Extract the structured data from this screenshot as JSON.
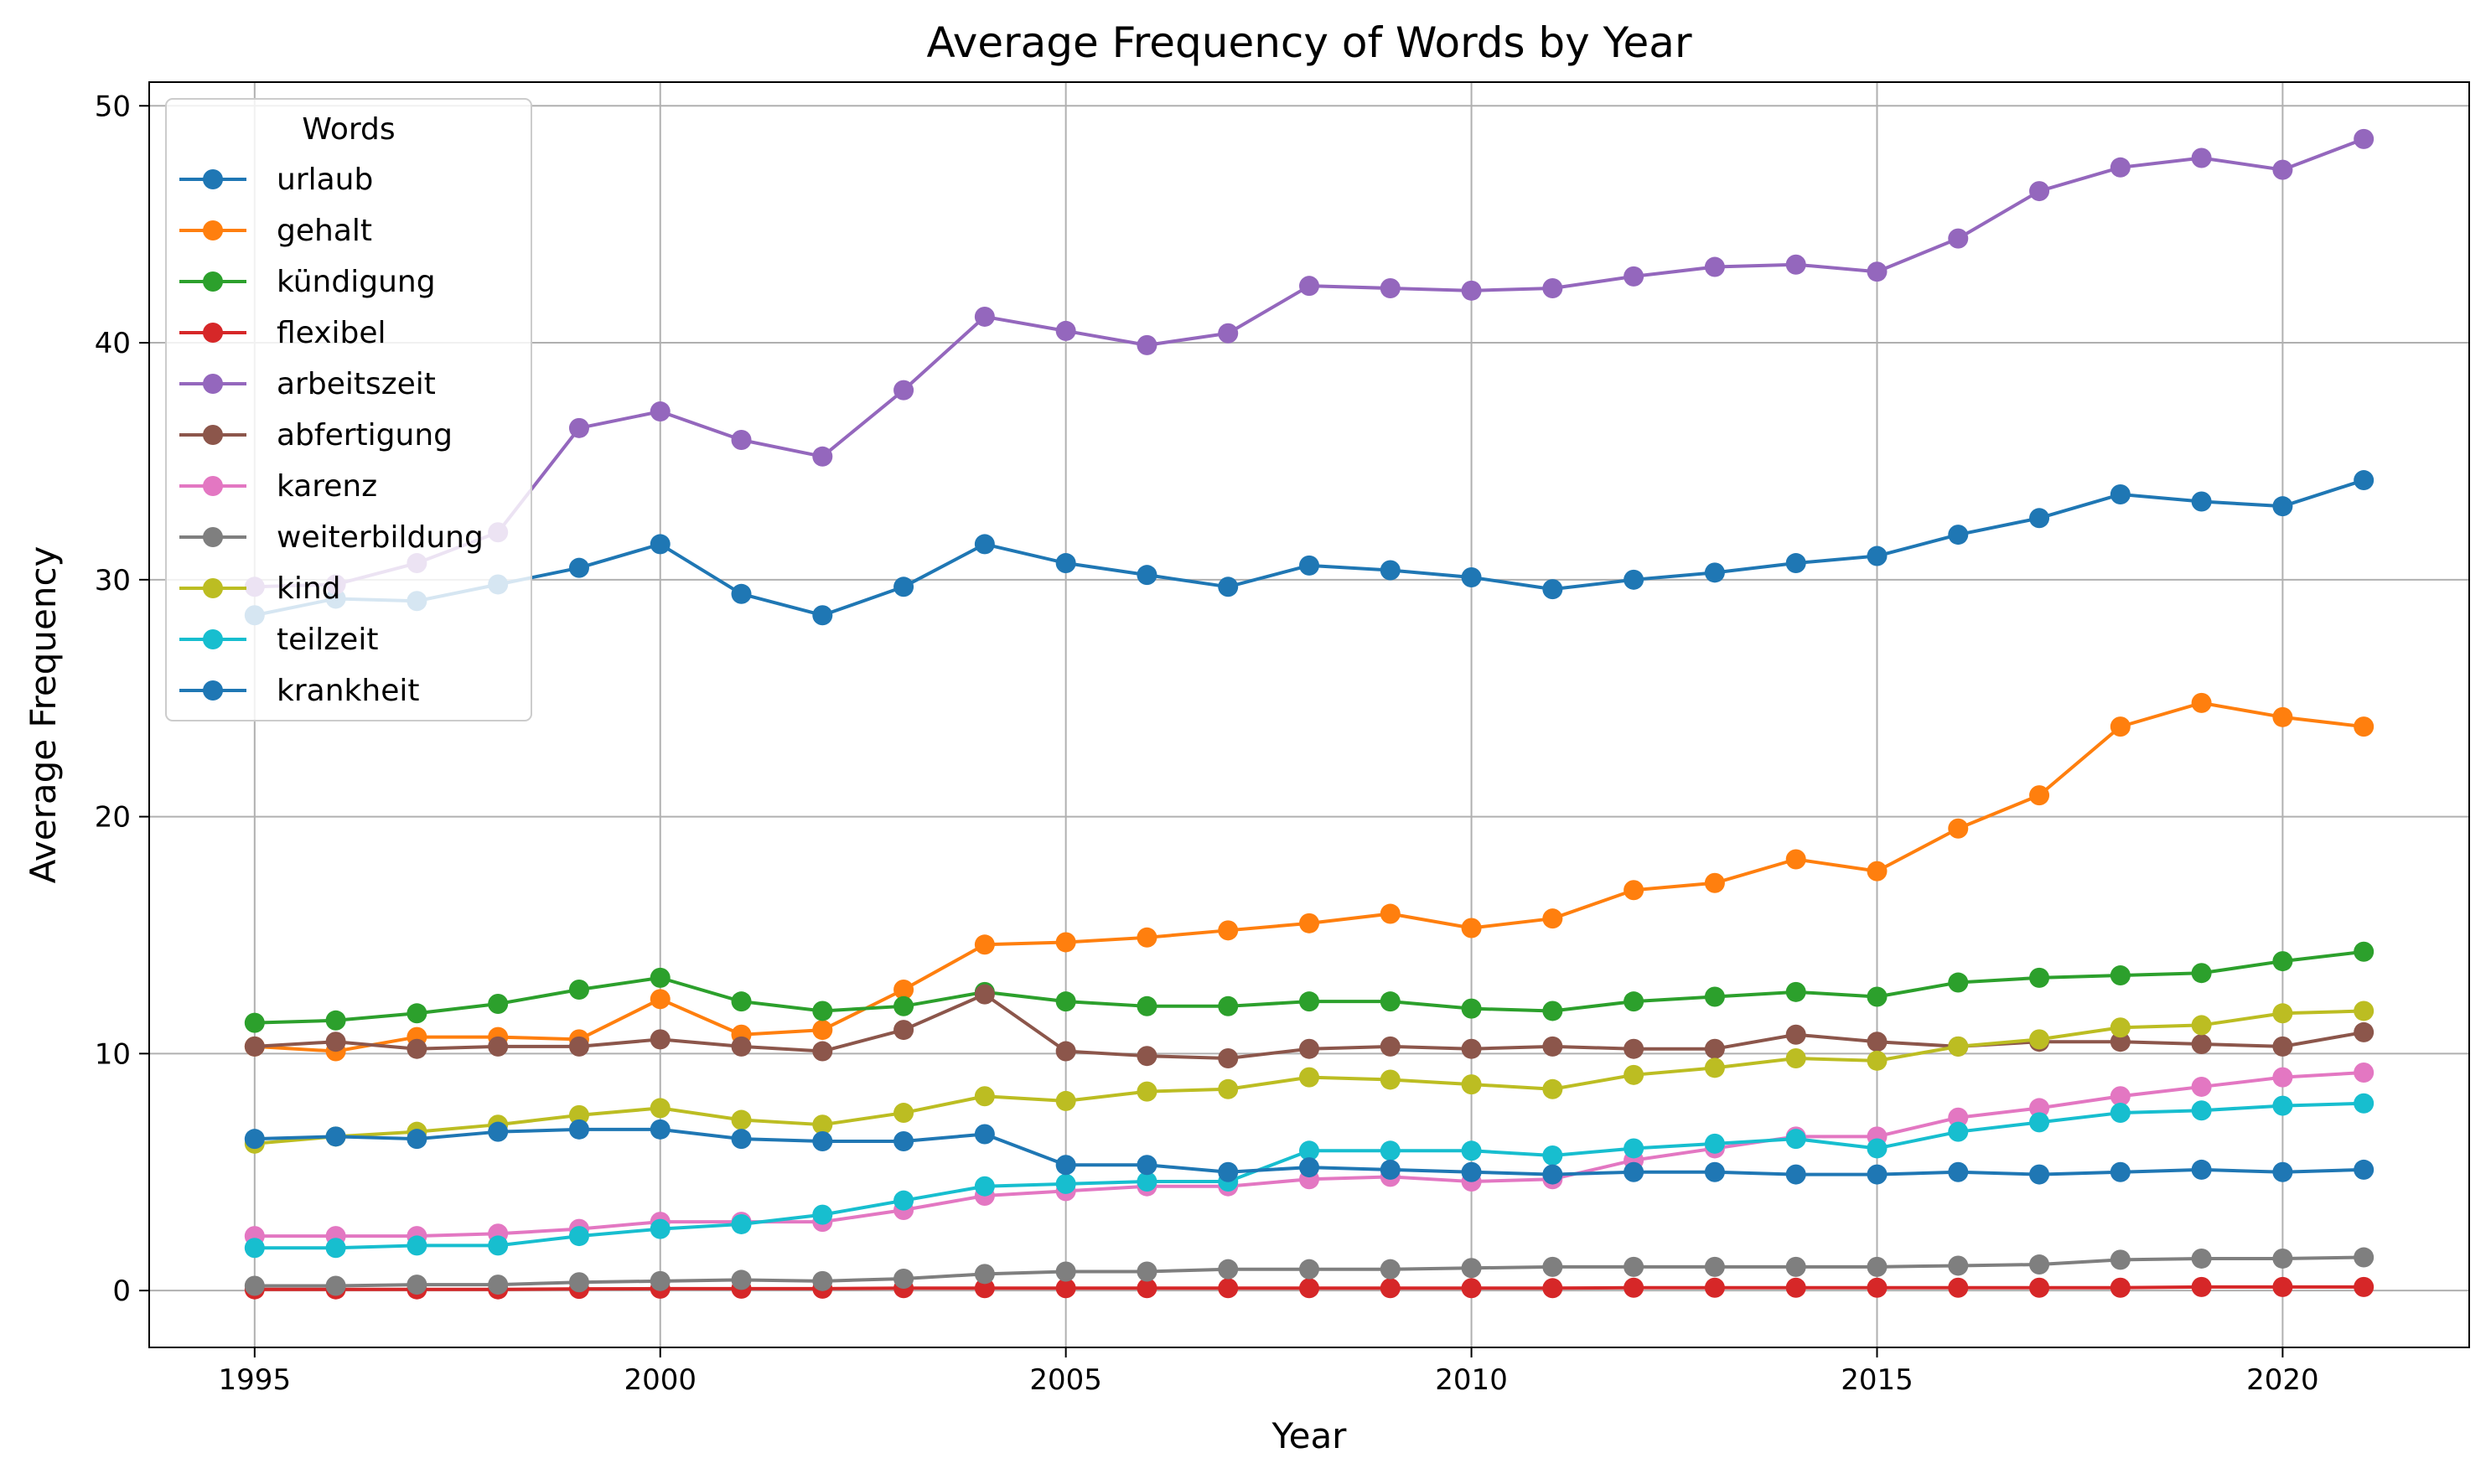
{
  "chart_data": {
    "type": "line",
    "title": "Average Frequency of Words by Year",
    "xlabel": "Year",
    "ylabel": "Average Frequency",
    "xlim": [
      1993.7,
      2022.3
    ],
    "ylim": [
      -2.4,
      51.0
    ],
    "xticks": [
      1995,
      2000,
      2005,
      2010,
      2015,
      2020
    ],
    "yticks": [
      0,
      10,
      20,
      30,
      40,
      50
    ],
    "grid": true,
    "legend": {
      "title": "Words",
      "placement": "upper-left"
    },
    "x": [
      1995,
      1996,
      1997,
      1998,
      1999,
      2000,
      2001,
      2002,
      2003,
      2004,
      2005,
      2006,
      2007,
      2008,
      2009,
      2010,
      2011,
      2012,
      2013,
      2014,
      2015,
      2016,
      2017,
      2018,
      2019,
      2020,
      2021
    ],
    "series": [
      {
        "name": "urlaub",
        "color": "#1f77b4",
        "values": [
          28.5,
          29.2,
          29.1,
          29.8,
          30.5,
          31.5,
          29.4,
          28.5,
          29.7,
          31.5,
          30.7,
          30.2,
          29.7,
          30.6,
          30.4,
          30.1,
          29.6,
          30.0,
          30.3,
          30.7,
          31.0,
          31.9,
          32.6,
          33.6,
          33.3,
          33.1,
          34.2
        ]
      },
      {
        "name": "gehalt",
        "color": "#ff7f0e",
        "values": [
          10.3,
          10.1,
          10.7,
          10.7,
          10.6,
          12.3,
          10.8,
          11.0,
          12.7,
          14.6,
          14.7,
          14.9,
          15.2,
          15.5,
          15.9,
          15.3,
          15.7,
          16.9,
          17.2,
          18.2,
          17.7,
          19.5,
          20.9,
          23.8,
          24.8,
          24.2,
          23.8
        ]
      },
      {
        "name": "kündigung",
        "color": "#2ca02c",
        "values": [
          11.3,
          11.4,
          11.7,
          12.1,
          12.7,
          13.2,
          12.2,
          11.8,
          12.0,
          12.6,
          12.2,
          12.0,
          12.0,
          12.2,
          12.2,
          11.9,
          11.8,
          12.2,
          12.4,
          12.6,
          12.4,
          13.0,
          13.2,
          13.3,
          13.4,
          13.9,
          14.3
        ]
      },
      {
        "name": "flexibel",
        "color": "#d62728",
        "values": [
          0.05,
          0.05,
          0.05,
          0.05,
          0.07,
          0.08,
          0.08,
          0.08,
          0.1,
          0.1,
          0.1,
          0.1,
          0.1,
          0.1,
          0.1,
          0.1,
          0.1,
          0.12,
          0.12,
          0.12,
          0.12,
          0.12,
          0.12,
          0.12,
          0.15,
          0.15,
          0.15
        ]
      },
      {
        "name": "arbeitszeit",
        "color": "#9467bd",
        "values": [
          29.7,
          29.8,
          30.7,
          32.0,
          36.4,
          37.1,
          35.9,
          35.2,
          38.0,
          41.1,
          40.5,
          39.9,
          40.4,
          42.4,
          42.3,
          42.2,
          42.3,
          42.8,
          43.2,
          43.3,
          43.0,
          44.4,
          46.4,
          47.4,
          47.8,
          47.3,
          48.6
        ]
      },
      {
        "name": "abfertigung",
        "color": "#8c564b",
        "values": [
          10.3,
          10.5,
          10.2,
          10.3,
          10.3,
          10.6,
          10.3,
          10.1,
          11.0,
          12.5,
          10.1,
          9.9,
          9.8,
          10.2,
          10.3,
          10.2,
          10.3,
          10.2,
          10.2,
          10.8,
          10.5,
          10.3,
          10.5,
          10.5,
          10.4,
          10.3,
          10.9
        ]
      },
      {
        "name": "karenz",
        "color": "#e377c2",
        "values": [
          2.3,
          2.3,
          2.3,
          2.4,
          2.6,
          2.9,
          2.9,
          2.9,
          3.4,
          4.0,
          4.2,
          4.4,
          4.4,
          4.7,
          4.8,
          4.6,
          4.7,
          5.5,
          6.0,
          6.5,
          6.5,
          7.3,
          7.7,
          8.2,
          8.6,
          9.0,
          9.2
        ]
      },
      {
        "name": "weiterbildung",
        "color": "#7f7f7f",
        "values": [
          0.2,
          0.2,
          0.25,
          0.25,
          0.35,
          0.4,
          0.45,
          0.4,
          0.5,
          0.7,
          0.8,
          0.8,
          0.9,
          0.9,
          0.9,
          0.95,
          1.0,
          1.0,
          1.0,
          1.0,
          1.0,
          1.05,
          1.1,
          1.3,
          1.35,
          1.35,
          1.4
        ]
      },
      {
        "name": "kind",
        "color": "#bcbd22",
        "values": [
          6.2,
          6.5,
          6.7,
          7.0,
          7.4,
          7.7,
          7.2,
          7.0,
          7.5,
          8.2,
          8.0,
          8.4,
          8.5,
          9.0,
          8.9,
          8.7,
          8.5,
          9.1,
          9.4,
          9.8,
          9.7,
          10.3,
          10.6,
          11.1,
          11.2,
          11.7,
          11.8
        ]
      },
      {
        "name": "teilzeit",
        "color": "#17becf",
        "values": [
          1.8,
          1.8,
          1.9,
          1.9,
          2.3,
          2.6,
          2.8,
          3.2,
          3.8,
          4.4,
          4.5,
          4.6,
          4.6,
          5.9,
          5.9,
          5.9,
          5.7,
          6.0,
          6.2,
          6.4,
          6.0,
          6.7,
          7.1,
          7.5,
          7.6,
          7.8,
          7.9
        ]
      },
      {
        "name": "krankheit",
        "color": "#1f77b4",
        "values": [
          6.4,
          6.5,
          6.4,
          6.7,
          6.8,
          6.8,
          6.4,
          6.3,
          6.3,
          6.6,
          5.3,
          5.3,
          5.0,
          5.2,
          5.1,
          5.0,
          4.9,
          5.0,
          5.0,
          4.9,
          4.9,
          5.0,
          4.9,
          5.0,
          5.1,
          5.0,
          5.1
        ]
      }
    ]
  }
}
